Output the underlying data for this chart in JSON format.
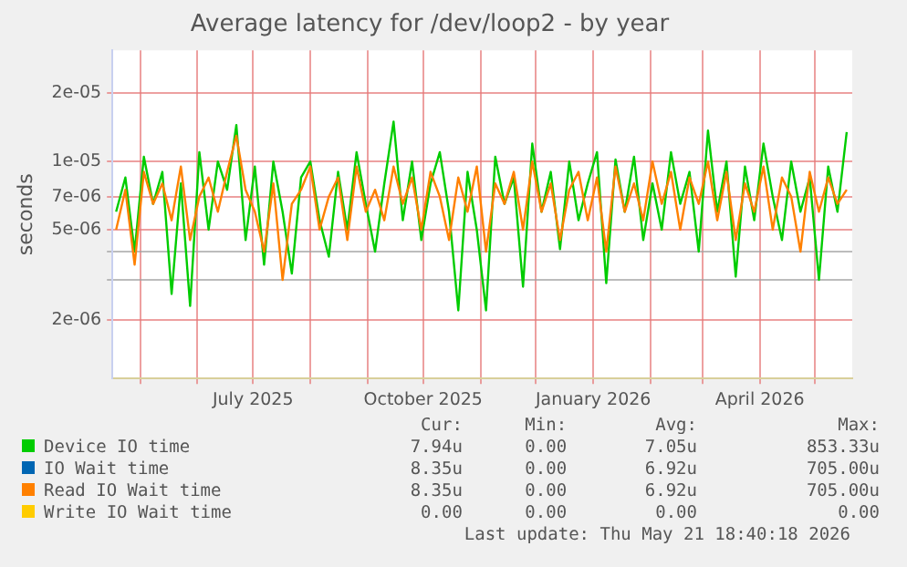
{
  "chart_data": {
    "type": "line",
    "title": "Average latency for /dev/loop2 - by year",
    "ylabel": "seconds",
    "x": [
      "2025-04-18",
      "2025-04-23",
      "2025-04-28",
      "2025-05-03",
      "2025-05-08",
      "2025-05-13",
      "2025-05-18",
      "2025-05-23",
      "2025-05-28",
      "2025-06-02",
      "2025-06-07",
      "2025-06-12",
      "2025-06-17",
      "2025-06-22",
      "2025-06-27",
      "2025-07-02",
      "2025-07-07",
      "2025-07-12",
      "2025-07-17",
      "2025-07-22",
      "2025-07-27",
      "2025-08-01",
      "2025-08-06",
      "2025-08-11",
      "2025-08-16",
      "2025-08-21",
      "2025-08-26",
      "2025-08-31",
      "2025-09-05",
      "2025-09-10",
      "2025-09-15",
      "2025-09-20",
      "2025-09-25",
      "2025-09-30",
      "2025-10-05",
      "2025-10-10",
      "2025-10-15",
      "2025-10-20",
      "2025-10-25",
      "2025-10-30",
      "2025-11-04",
      "2025-11-09",
      "2025-11-14",
      "2025-11-19",
      "2025-11-24",
      "2025-11-29",
      "2025-12-04",
      "2025-12-09",
      "2025-12-14",
      "2025-12-19",
      "2025-12-24",
      "2025-12-29",
      "2026-01-03",
      "2026-01-08",
      "2026-01-13",
      "2026-01-18",
      "2026-01-23",
      "2026-01-28",
      "2026-02-02",
      "2026-02-07",
      "2026-02-12",
      "2026-02-17",
      "2026-02-22",
      "2026-02-27",
      "2026-03-04",
      "2026-03-09",
      "2026-03-14",
      "2026-03-19",
      "2026-03-24",
      "2026-03-29",
      "2026-04-03",
      "2026-04-08",
      "2026-04-13",
      "2026-04-18",
      "2026-04-23",
      "2026-04-28",
      "2026-05-03",
      "2026-05-08",
      "2026-05-13",
      "2026-05-18"
    ],
    "series": [
      {
        "name": "Device IO time",
        "color": "#00cc00",
        "values": [
          6e-06,
          8.5e-06,
          4e-06,
          1.05e-05,
          6.5e-06,
          9e-06,
          2.6e-06,
          8e-06,
          2.3e-06,
          1.1e-05,
          5e-06,
          1e-05,
          7.5e-06,
          1.45e-05,
          4.5e-06,
          9.5e-06,
          3.5e-06,
          1e-05,
          6e-06,
          3.2e-06,
          8.5e-06,
          1e-05,
          5.5e-06,
          3.8e-06,
          9e-06,
          5e-06,
          1.1e-05,
          6.5e-06,
          4e-06,
          8e-06,
          1.5e-05,
          5.5e-06,
          1e-05,
          4.5e-06,
          8e-06,
          1.1e-05,
          6e-06,
          2.2e-06,
          9e-06,
          5e-06,
          2.2e-06,
          1.05e-05,
          6.5e-06,
          8.5e-06,
          2.8e-06,
          1.2e-05,
          6e-06,
          9e-06,
          4.1e-06,
          1e-05,
          5.5e-06,
          8e-06,
          1.1e-05,
          2.9e-06,
          1.02e-05,
          6e-06,
          1.05e-05,
          4.5e-06,
          8e-06,
          5e-06,
          1.1e-05,
          6.5e-06,
          9e-06,
          4e-06,
          1.37e-05,
          6e-06,
          1e-05,
          3.1e-06,
          9.5e-06,
          5.5e-06,
          1.2e-05,
          7e-06,
          4.5e-06,
          1e-05,
          6e-06,
          8.5e-06,
          3e-06,
          9.5e-06,
          6e-06,
          1.35e-05
        ]
      },
      {
        "name": "IO Wait time",
        "color": "#0066b3",
        "values": [
          null,
          null,
          null,
          null,
          null,
          null,
          null,
          null,
          null,
          null,
          null,
          null,
          null,
          null,
          null,
          null,
          null,
          null,
          null,
          null,
          null,
          null,
          null,
          null,
          null,
          null,
          null,
          null,
          null,
          null,
          null,
          null,
          null,
          null,
          null,
          null,
          null,
          null,
          null,
          null,
          null,
          null,
          null,
          null,
          null,
          null,
          null,
          null,
          null,
          null,
          null,
          null,
          null,
          null,
          null,
          null,
          null,
          null,
          null,
          null,
          null,
          null,
          null,
          null,
          null,
          null,
          null,
          null,
          null,
          null,
          null,
          null,
          null,
          null,
          null,
          null,
          null,
          null,
          null,
          null
        ]
      },
      {
        "name": "Read IO Wait time",
        "color": "#ff8000",
        "values": [
          5e-06,
          7.5e-06,
          3.5e-06,
          9e-06,
          6.5e-06,
          8e-06,
          5.5e-06,
          9.5e-06,
          4.5e-06,
          7e-06,
          8.5e-06,
          6e-06,
          9e-06,
          1.3e-05,
          7.5e-06,
          6e-06,
          4e-06,
          8e-06,
          3e-06,
          6.5e-06,
          7.5e-06,
          9.5e-06,
          5e-06,
          7e-06,
          8.5e-06,
          4.5e-06,
          9.5e-06,
          6e-06,
          7.5e-06,
          5.5e-06,
          9.5e-06,
          6.5e-06,
          8.5e-06,
          5e-06,
          9e-06,
          7e-06,
          4.5e-06,
          8.5e-06,
          6e-06,
          9.5e-06,
          4e-06,
          8e-06,
          6.5e-06,
          9e-06,
          5e-06,
          1e-05,
          6e-06,
          8e-06,
          4.5e-06,
          7.5e-06,
          9e-06,
          5.5e-06,
          8.5e-06,
          4e-06,
          9.5e-06,
          6e-06,
          8e-06,
          5.5e-06,
          1e-05,
          6.5e-06,
          9e-06,
          5e-06,
          8.5e-06,
          6.5e-06,
          1e-05,
          5.5e-06,
          9e-06,
          4.5e-06,
          8e-06,
          6e-06,
          9.5e-06,
          5e-06,
          8.5e-06,
          7e-06,
          4e-06,
          9e-06,
          6e-06,
          8.5e-06,
          6.5e-06,
          7.5e-06
        ]
      },
      {
        "name": "Write IO Wait time",
        "color": "#ffcc00",
        "values": [
          null,
          null,
          null,
          null,
          null,
          null,
          null,
          null,
          null,
          null,
          null,
          null,
          null,
          null,
          null,
          null,
          null,
          null,
          null,
          null,
          null,
          null,
          null,
          null,
          null,
          null,
          null,
          null,
          null,
          null,
          null,
          null,
          null,
          null,
          null,
          null,
          null,
          null,
          null,
          null,
          null,
          null,
          null,
          null,
          null,
          null,
          null,
          null,
          null,
          null,
          null,
          null,
          null,
          null,
          null,
          null,
          null,
          null,
          null,
          null,
          null,
          null,
          null,
          null,
          null,
          null,
          null,
          null,
          null,
          null,
          null,
          null,
          null,
          null,
          null,
          null,
          null,
          null,
          null,
          null
        ]
      }
    ],
    "xlim": [
      "2025-04-16",
      "2026-05-21"
    ],
    "xticks": [
      {
        "value": "2025-05-01",
        "label": null
      },
      {
        "value": "2025-06-01",
        "label": null
      },
      {
        "value": "2025-07-01",
        "label": "July 2025"
      },
      {
        "value": "2025-08-01",
        "label": null
      },
      {
        "value": "2025-09-01",
        "label": null
      },
      {
        "value": "2025-10-01",
        "label": "October 2025"
      },
      {
        "value": "2025-11-01",
        "label": null
      },
      {
        "value": "2025-12-01",
        "label": null
      },
      {
        "value": "2026-01-01",
        "label": "January 2026"
      },
      {
        "value": "2026-02-01",
        "label": null
      },
      {
        "value": "2026-03-01",
        "label": null
      },
      {
        "value": "2026-04-01",
        "label": "April 2026"
      },
      {
        "value": "2026-05-01",
        "label": null
      }
    ],
    "ylim": [
      1.1e-06,
      3.1e-05
    ],
    "yticks": [
      {
        "value": 2e-06,
        "label": "2e-06"
      },
      {
        "value": 3e-06,
        "label": null
      },
      {
        "value": 4e-06,
        "label": null
      },
      {
        "value": 5e-06,
        "label": "5e-06"
      },
      {
        "value": 7e-06,
        "label": "7e-06"
      },
      {
        "value": 1e-05,
        "label": "1e-05"
      },
      {
        "value": 2e-05,
        "label": "2e-05"
      }
    ],
    "log": "y",
    "grid": true,
    "legend": "bottom",
    "marker": "none",
    "line_style": "solid",
    "annotations": [
      "Cur:",
      "Min:",
      "Avg:",
      "Max:",
      "7.94u",
      "0.00",
      "7.05u",
      "853.33u",
      "8.35u",
      "0.00",
      "6.92u",
      "705.00u",
      "8.35u",
      "0.00",
      "6.92u",
      "705.00u",
      "0.00",
      "0.00",
      "0.00",
      "0.00",
      "Last update: Thu May 21 18:40:18 2026"
    ]
  }
}
